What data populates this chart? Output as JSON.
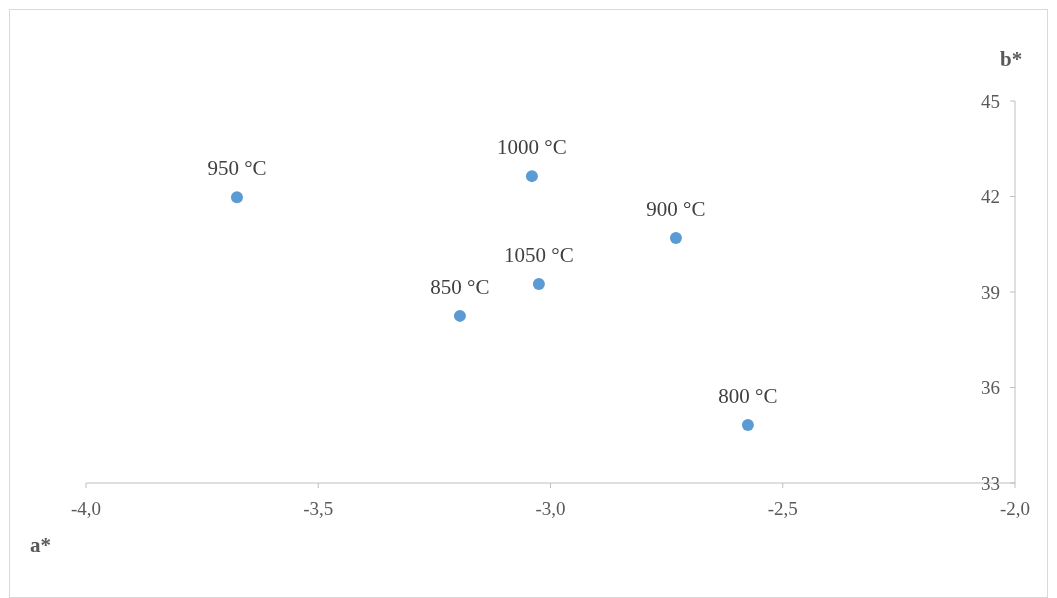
{
  "chart_data": {
    "type": "scatter",
    "xlabel": "a*",
    "ylabel": "b*",
    "x": [
      -3.675,
      -3.04,
      -2.73,
      -3.025,
      -3.195,
      -2.575
    ],
    "values": [
      41.98,
      42.64,
      40.7,
      39.25,
      38.25,
      34.82
    ],
    "color": "#5b9bd5",
    "marker": "circle",
    "grid": false,
    "xlim": [
      -4,
      -2
    ],
    "ylim": [
      33,
      45
    ],
    "xticks": [
      {
        "value": -4,
        "label": "-4,0"
      },
      {
        "value": -3.5,
        "label": "-3,5"
      },
      {
        "value": -3,
        "label": "-3,0"
      },
      {
        "value": -2.5,
        "label": "-2,5"
      },
      {
        "value": -2,
        "label": "-2,0"
      }
    ],
    "yticks": [
      33,
      36,
      39,
      42,
      45
    ],
    "annotations": [
      {
        "text": "950 °C",
        "x": -3.675,
        "y": 41.98
      },
      {
        "text": "1000 °C",
        "x": -3.04,
        "y": 42.64
      },
      {
        "text": "900 °C",
        "x": -2.73,
        "y": 40.7
      },
      {
        "text": "1050 °C",
        "x": -3.025,
        "y": 39.25
      },
      {
        "text": "850 °C",
        "x": -3.195,
        "y": 38.25
      },
      {
        "text": "800 °C",
        "x": -2.575,
        "y": 34.82
      }
    ]
  }
}
